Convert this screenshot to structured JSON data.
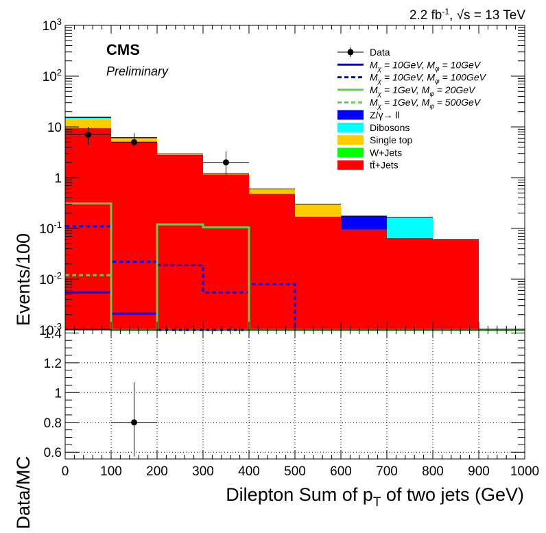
{
  "lumi_label": "2.2 fb",
  "lumi_sup": "-1",
  "energy_label": ", √s = 13 TeV",
  "cms_label": "CMS",
  "prelim_label": "Preliminary",
  "colors": {
    "ttjets": "#ff0000",
    "wjets": "#00ff00",
    "singletop": "#ffcc00",
    "dibosons": "#00ffff",
    "zgamma": "#0000ff",
    "sig_blue": "#0000ff",
    "sig_green": "#66cc55"
  },
  "chart_data": [
    {
      "type": "bar",
      "stacked": true,
      "ylabel": "Events/100",
      "log_y": true,
      "xlim": [
        0,
        1000
      ],
      "ylim": [
        0.001,
        1000
      ],
      "y_tick_labels": [
        "10⁻³",
        "10⁻²",
        "10⁻¹",
        "1",
        "10",
        "10²",
        "10³"
      ],
      "bin_edges": [
        0,
        100,
        200,
        300,
        400,
        500,
        600,
        700,
        800,
        900,
        1000
      ],
      "legend": [
        {
          "label": "Data",
          "style": "marker"
        },
        {
          "label": "M_χ = 10GeV, M_φ = 10GeV",
          "style": "solid-blue",
          "text": "M",
          "sub1": "χ",
          "mid": " = 10GeV, M",
          "sub2": "φ",
          "end": " = 10GeV"
        },
        {
          "label": "M_χ = 10GeV, M_φ = 100GeV",
          "style": "dashed-blue",
          "text": "M",
          "sub1": "χ",
          "mid": " = 10GeV, M",
          "sub2": "φ",
          "end": " = 100GeV"
        },
        {
          "label": "M_χ = 1GeV, M_φ = 20GeV",
          "style": "solid-green",
          "text": "M",
          "sub1": "χ",
          "mid": " = 1GeV, M",
          "sub2": "φ",
          "end": " = 20GeV"
        },
        {
          "label": "M_χ = 1GeV, M_φ = 500GeV",
          "style": "dashed-green",
          "text": "M",
          "sub1": "χ",
          "mid": " = 1GeV, M",
          "sub2": "φ",
          "end": " = 500GeV"
        },
        {
          "label": "Z/γ→ ll",
          "style": "fill-zgamma"
        },
        {
          "label": "Dibosons",
          "style": "fill-dibosons"
        },
        {
          "label": "Single top",
          "style": "fill-singletop"
        },
        {
          "label": "W+Jets",
          "style": "fill-wjets"
        },
        {
          "label": "tt̄+Jets",
          "style": "fill-ttjets"
        }
      ],
      "stack": [
        {
          "name": "tt̄+Jets",
          "color_key": "ttjets",
          "values": [
            9.5,
            5.0,
            2.8,
            1.15,
            0.48,
            0.17,
            0.095,
            0.065,
            0.06,
            0
          ]
        },
        {
          "name": "W+Jets",
          "color_key": "wjets",
          "values": [
            0,
            0,
            0,
            0,
            0,
            0,
            0,
            0,
            0,
            0
          ]
        },
        {
          "name": "Single top",
          "color_key": "singletop",
          "values": [
            5.0,
            0.9,
            0.15,
            0.05,
            0.12,
            0.13,
            0,
            0,
            0,
            0
          ]
        },
        {
          "name": "Dibosons",
          "color_key": "dibosons",
          "values": [
            0.5,
            0.1,
            0,
            0,
            0,
            0,
            0,
            0.1,
            0,
            0
          ]
        },
        {
          "name": "Z/γ→ ll",
          "color_key": "zgamma",
          "values": [
            0.6,
            0.15,
            0,
            0,
            0,
            0,
            0.08,
            0,
            0,
            0
          ]
        }
      ],
      "signals": [
        {
          "name": "M_χ = 10GeV, M_φ = 10GeV",
          "color_key": "sig_blue",
          "dashed": false,
          "values": [
            0.0055,
            0.0021,
            0.001,
            0.001,
            0.001,
            0.001,
            0.001,
            0.001,
            0.001,
            0.001
          ]
        },
        {
          "name": "M_χ = 10GeV, M_φ = 100GeV",
          "color_key": "sig_blue",
          "dashed": true,
          "values": [
            0.11,
            0.022,
            0.019,
            0.0055,
            0.008,
            0.001,
            0.001,
            0.001,
            0.001,
            0.001
          ]
        },
        {
          "name": "M_χ = 1GeV, M_φ = 20GeV",
          "color_key": "sig_green",
          "dashed": false,
          "values": [
            0.31,
            0.001,
            0.12,
            0.105,
            0.001,
            0.001,
            0.001,
            0.001,
            0.001,
            0.001
          ]
        },
        {
          "name": "M_χ = 1GeV, M_φ = 500GeV",
          "color_key": "sig_green",
          "dashed": true,
          "values": [
            0.012,
            0.001,
            0.001,
            0.001,
            0.001,
            0.001,
            0.001,
            0.001,
            0.001,
            0.001
          ]
        }
      ],
      "data_points": [
        {
          "x": 50,
          "y": 7.0,
          "err_lo": 2.6,
          "err_hi": 3.0
        },
        {
          "x": 150,
          "y": 5.0,
          "err_lo": 2.2,
          "err_hi": 2.5
        },
        {
          "x": 350,
          "y": 2.0,
          "err_lo": 1.45,
          "err_hi": 1.3
        }
      ]
    },
    {
      "type": "scatter",
      "ylabel": "Data/MC",
      "xlabel": "Dilepton Sum of p",
      "xlabel_sub": "T",
      "xlabel_end": " of two jets (GeV)",
      "xlim": [
        0,
        1000
      ],
      "ylim": [
        0.555,
        1.42
      ],
      "grid": true,
      "y_ticks": [
        0.6,
        0.8,
        1.0,
        1.2,
        1.4
      ],
      "y_tick_labels": [
        "0.6",
        "0.8",
        "1",
        "1.2",
        "1.4"
      ],
      "x_ticks": [
        0,
        100,
        200,
        300,
        400,
        500,
        600,
        700,
        800,
        900,
        1000
      ],
      "x_tick_labels": [
        "0",
        "100",
        "200",
        "300",
        "400",
        "500",
        "600",
        "700",
        "800",
        "900",
        "1000"
      ],
      "points": [
        {
          "x": 150,
          "y": 0.8,
          "xerr": 50,
          "err_lo": 0.23,
          "err_hi": 0.27
        }
      ]
    }
  ]
}
